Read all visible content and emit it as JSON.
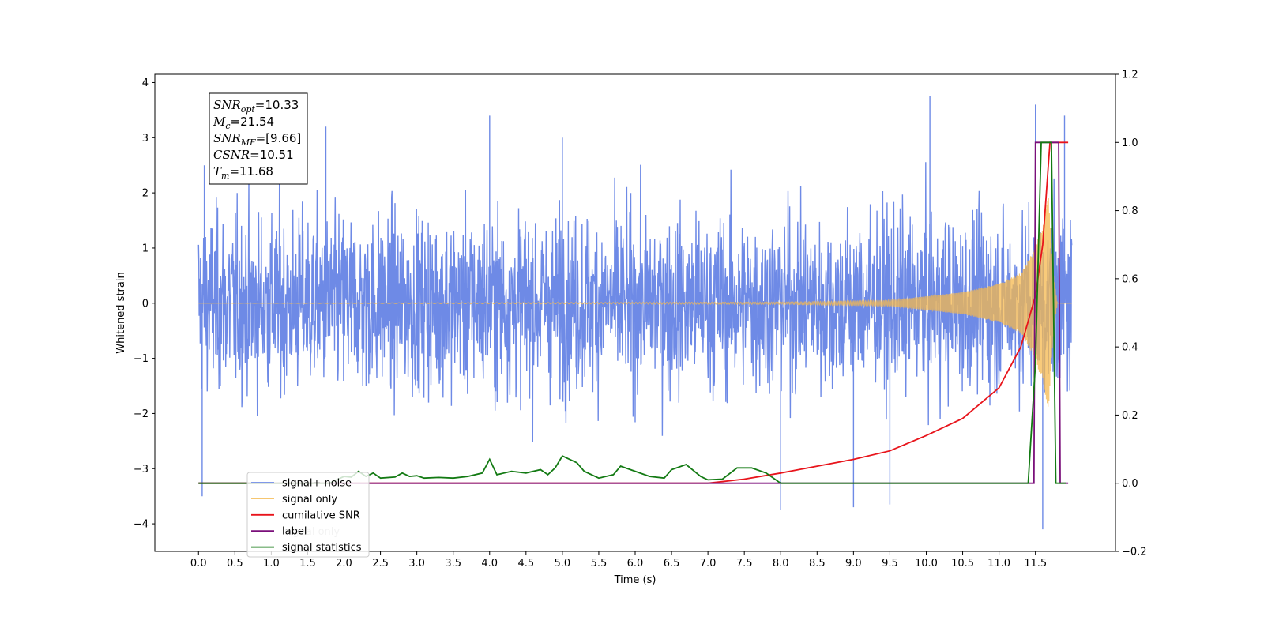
{
  "chart_data": {
    "type": "line",
    "xlabel": "Time (s)",
    "ylabel": "Whitened strain",
    "xlim": [
      -0.6,
      12.6
    ],
    "ylim": [
      -4.5,
      4.15
    ],
    "y2lim": [
      -0.2,
      1.2
    ],
    "x_ticks": [
      0.0,
      0.5,
      1.0,
      1.5,
      2.0,
      2.5,
      3.0,
      3.5,
      4.0,
      4.5,
      5.0,
      5.5,
      6.0,
      6.5,
      7.0,
      7.5,
      8.0,
      8.5,
      9.0,
      9.5,
      10.0,
      10.5,
      11.0,
      11.5
    ],
    "x_tick_labels": [
      "0.0",
      "0.5",
      "1.0",
      "1.5",
      "2.0",
      "2.5",
      "3.0",
      "3.5",
      "4.0",
      "4.5",
      "5.0",
      "5.5",
      "6.0",
      "6.5",
      "7.0",
      "7.5",
      "8.0",
      "8.5",
      "9.0",
      "9.5",
      "10.0",
      "10.5",
      "11.0",
      "11.5"
    ],
    "y_ticks": [
      -4,
      -3,
      -2,
      -1,
      0,
      1,
      2,
      3,
      4
    ],
    "y_tick_labels": [
      "−4",
      "−3",
      "−2",
      "−1",
      "0",
      "1",
      "2",
      "3",
      "4"
    ],
    "y2_ticks": [
      -0.2,
      0.0,
      0.2,
      0.4,
      0.6,
      0.8,
      1.0,
      1.2
    ],
    "y2_tick_labels": [
      "−0.2",
      "0.0",
      "0.2",
      "0.4",
      "0.6",
      "0.8",
      "1.0",
      "1.2"
    ],
    "legend_position": "lower-left",
    "series": [
      {
        "name": "signal+ noise",
        "color": "#6e8ae6",
        "axis": "left",
        "description_values": {
          "t_start": 0.0,
          "t_end": 12.0,
          "envelope_typical": 1.5,
          "spikes": [
            [
              0.05,
              -3.5
            ],
            [
              0.08,
              2.5
            ],
            [
              1.75,
              3.2
            ],
            [
              4.0,
              3.4
            ],
            [
              5.0,
              3.0
            ],
            [
              8.0,
              -3.75
            ],
            [
              9.0,
              -3.7
            ],
            [
              9.5,
              -3.65
            ],
            [
              10.05,
              3.75
            ],
            [
              11.5,
              3.6
            ],
            [
              11.6,
              -4.1
            ],
            [
              11.9,
              3.4
            ]
          ]
        }
      },
      {
        "name": "signal only",
        "color": "#f5b84d",
        "axis": "left",
        "points": [
          [
            0.0,
            0.0
          ],
          [
            8.0,
            0.02
          ],
          [
            9.5,
            0.05
          ],
          [
            10.5,
            0.2
          ],
          [
            11.0,
            0.35
          ],
          [
            11.3,
            0.55
          ],
          [
            11.5,
            1.0
          ],
          [
            11.6,
            1.5
          ],
          [
            11.68,
            2.0
          ],
          [
            11.75,
            0.5
          ],
          [
            11.8,
            0.0
          ],
          [
            12.0,
            0.0
          ]
        ]
      },
      {
        "name": "cumilative SNR",
        "color": "#e8141b",
        "axis": "right",
        "points": [
          [
            0.0,
            0.0
          ],
          [
            7.0,
            0.0
          ],
          [
            7.5,
            0.012
          ],
          [
            8.0,
            0.03
          ],
          [
            8.5,
            0.05
          ],
          [
            9.0,
            0.07
          ],
          [
            9.5,
            0.095
          ],
          [
            10.0,
            0.14
          ],
          [
            10.5,
            0.19
          ],
          [
            11.0,
            0.28
          ],
          [
            11.3,
            0.4
          ],
          [
            11.5,
            0.55
          ],
          [
            11.6,
            0.7
          ],
          [
            11.68,
            0.94
          ],
          [
            11.7,
            1.0
          ],
          [
            11.95,
            1.0
          ]
        ]
      },
      {
        "name": "label",
        "color": "#7a0f7a",
        "axis": "right",
        "points": [
          [
            0.0,
            0.0
          ],
          [
            11.48,
            0.0
          ],
          [
            11.5,
            1.0
          ],
          [
            11.82,
            1.0
          ],
          [
            11.84,
            0.0
          ],
          [
            11.95,
            0.0
          ]
        ]
      },
      {
        "name": "signal statistics",
        "color": "#137a13",
        "axis": "right",
        "points": [
          [
            0.0,
            0.0
          ],
          [
            1.8,
            0.0
          ],
          [
            2.0,
            0.02
          ],
          [
            2.1,
            0.018
          ],
          [
            2.2,
            0.035
          ],
          [
            2.3,
            0.02
          ],
          [
            2.4,
            0.03
          ],
          [
            2.5,
            0.015
          ],
          [
            2.7,
            0.018
          ],
          [
            2.8,
            0.03
          ],
          [
            2.9,
            0.02
          ],
          [
            3.0,
            0.022
          ],
          [
            3.1,
            0.015
          ],
          [
            3.3,
            0.017
          ],
          [
            3.5,
            0.015
          ],
          [
            3.7,
            0.02
          ],
          [
            3.9,
            0.03
          ],
          [
            4.0,
            0.07
          ],
          [
            4.1,
            0.025
          ],
          [
            4.3,
            0.035
          ],
          [
            4.5,
            0.03
          ],
          [
            4.7,
            0.04
          ],
          [
            4.8,
            0.025
          ],
          [
            4.9,
            0.045
          ],
          [
            5.0,
            0.08
          ],
          [
            5.2,
            0.06
          ],
          [
            5.3,
            0.035
          ],
          [
            5.5,
            0.015
          ],
          [
            5.7,
            0.025
          ],
          [
            5.8,
            0.05
          ],
          [
            6.0,
            0.035
          ],
          [
            6.2,
            0.02
          ],
          [
            6.4,
            0.015
          ],
          [
            6.5,
            0.04
          ],
          [
            6.7,
            0.055
          ],
          [
            6.9,
            0.02
          ],
          [
            7.0,
            0.01
          ],
          [
            7.2,
            0.012
          ],
          [
            7.4,
            0.045
          ],
          [
            7.6,
            0.045
          ],
          [
            7.8,
            0.03
          ],
          [
            8.0,
            0.0
          ],
          [
            11.4,
            0.0
          ],
          [
            11.5,
            0.35
          ],
          [
            11.58,
            1.0
          ],
          [
            11.72,
            1.0
          ],
          [
            11.78,
            0.0
          ],
          [
            11.92,
            0.0
          ]
        ]
      }
    ],
    "legend": [
      "signal+ noise",
      "signal only",
      "cumilative SNR",
      "label",
      "signal statistics"
    ],
    "hidden_text_behind_legend": "signal only",
    "annotation_box": {
      "lines": [
        {
          "label": "SNR",
          "sub": "opt",
          "value": "=10.33"
        },
        {
          "label": "M",
          "sub": "c",
          "value": "=21.54"
        },
        {
          "label": "SNR",
          "sub": "MF",
          "value": "=[9.66]"
        },
        {
          "label": "CSNR",
          "sub": "",
          "value": "=10.51"
        },
        {
          "label": "T",
          "sub": "m",
          "value": "=11.68"
        }
      ]
    }
  }
}
